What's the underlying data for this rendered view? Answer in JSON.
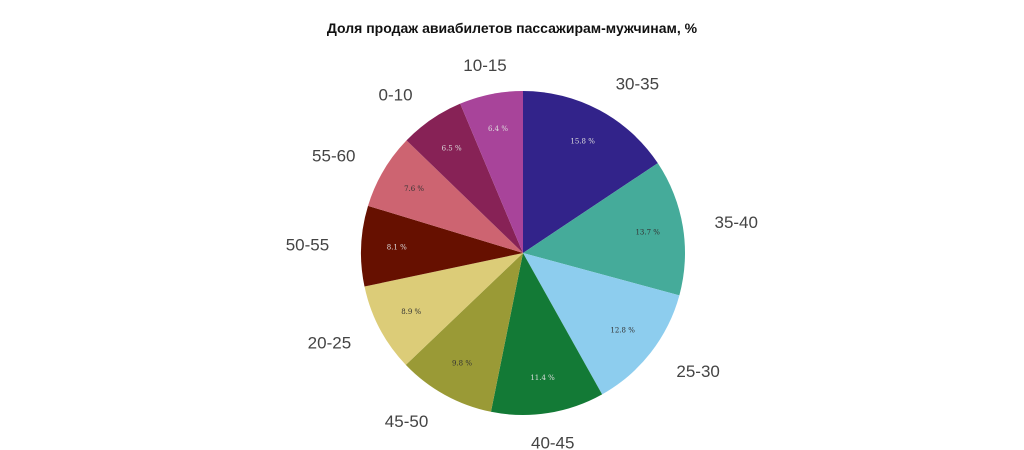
{
  "chart_data": {
    "type": "pie",
    "title": "Доля продаж авиабилетов пассажирам-мужчинам, %",
    "categories": [
      "30-35",
      "35-40",
      "25-30",
      "40-45",
      "45-50",
      "20-25",
      "50-55",
      "55-60",
      "0-10",
      "10-15"
    ],
    "values": [
      15.8,
      13.7,
      12.8,
      11.4,
      9.8,
      8.9,
      8.1,
      7.6,
      6.5,
      6.4
    ],
    "data_labels": [
      "15.8 %",
      "13.7 %",
      "12.8 %",
      "11.4 %",
      "9.8 %",
      "8.9 %",
      "8.1 %",
      "7.6 %",
      "6.5 %",
      "6.4 %"
    ],
    "colors": [
      "#32238a",
      "#45ab9a",
      "#8dcdee",
      "#137a36",
      "#9a9a36",
      "#dccc78",
      "#661000",
      "#cd6471",
      "#872256",
      "#a8449a"
    ],
    "label_colors": [
      "#ddd",
      "#333",
      "#333",
      "#ddd",
      "#333",
      "#333",
      "#ddd",
      "#333",
      "#ddd",
      "#ddd"
    ],
    "start": "top",
    "direction": "clockwise",
    "legend": "none"
  }
}
